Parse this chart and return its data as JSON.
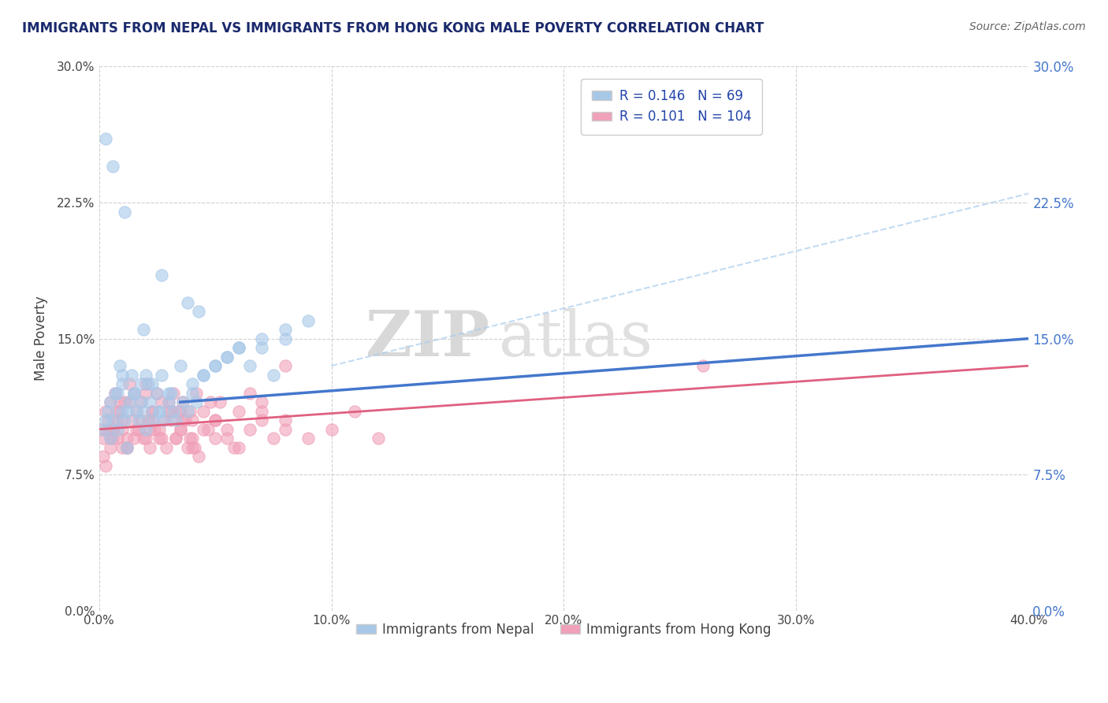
{
  "title": "IMMIGRANTS FROM NEPAL VS IMMIGRANTS FROM HONG KONG MALE POVERTY CORRELATION CHART",
  "source": "Source: ZipAtlas.com",
  "xlabel_nepal": "Immigrants from Nepal",
  "xlabel_hongkong": "Immigrants from Hong Kong",
  "ylabel": "Male Poverty",
  "r_nepal": 0.146,
  "n_nepal": 69,
  "r_hongkong": 0.101,
  "n_hongkong": 104,
  "color_nepal": "#a8c8e8",
  "color_hongkong": "#f0a0b8",
  "color_nepal_line": "#4477cc",
  "color_hongkong_line": "#e06080",
  "legend_r_color": "#000000",
  "legend_n_color": "#44aa44",
  "watermark_zip": "ZIP",
  "watermark_atlas": "atlas",
  "xlim": [
    0.0,
    40.0
  ],
  "ylim": [
    0.0,
    30.0
  ],
  "xticks": [
    0.0,
    10.0,
    20.0,
    30.0,
    40.0
  ],
  "yticks": [
    0.0,
    7.5,
    15.0,
    22.5,
    30.0
  ],
  "xtick_labels": [
    "0.0%",
    "10.0%",
    "20.0%",
    "30.0%",
    "40.0%"
  ],
  "ytick_labels": [
    "0.0%",
    "7.5%",
    "15.0%",
    "22.5%",
    "30.0%"
  ],
  "nepal_line_x0": 3.5,
  "nepal_line_x1": 40.0,
  "nepal_line_y0": 11.5,
  "nepal_line_y1": 15.0,
  "hk_line_x0": 0.0,
  "hk_line_x1": 40.0,
  "hk_line_y0": 10.0,
  "hk_line_y1": 13.5,
  "nepal_scatter_x": [
    0.3,
    0.5,
    0.5,
    0.7,
    0.8,
    0.9,
    1.0,
    1.0,
    1.1,
    1.2,
    1.3,
    1.4,
    1.5,
    1.6,
    1.7,
    1.8,
    1.9,
    2.0,
    2.1,
    2.2,
    2.3,
    2.5,
    2.6,
    2.7,
    2.8,
    3.0,
    3.1,
    3.2,
    3.5,
    3.8,
    4.0,
    4.2,
    4.5,
    5.0,
    5.5,
    6.0,
    6.5,
    7.0,
    7.5,
    8.0,
    0.2,
    0.4,
    0.6,
    0.8,
    1.0,
    1.2,
    1.5,
    1.8,
    2.0,
    2.3,
    2.6,
    3.0,
    3.3,
    3.6,
    4.0,
    4.5,
    5.0,
    5.5,
    6.0,
    7.0,
    8.0,
    9.0,
    0.3,
    0.6,
    1.1,
    2.7,
    3.8,
    4.3,
    1.9
  ],
  "nepal_scatter_y": [
    10.5,
    11.5,
    9.5,
    12.0,
    10.0,
    13.5,
    11.0,
    12.5,
    10.5,
    9.0,
    11.5,
    13.0,
    12.0,
    11.0,
    10.5,
    12.5,
    11.0,
    10.0,
    12.5,
    11.5,
    10.5,
    12.0,
    11.0,
    13.0,
    10.5,
    11.5,
    12.0,
    11.0,
    13.5,
    11.0,
    12.0,
    11.5,
    13.0,
    13.5,
    14.0,
    14.5,
    13.5,
    14.5,
    13.0,
    15.0,
    10.0,
    11.0,
    10.5,
    12.0,
    13.0,
    11.0,
    12.0,
    11.5,
    13.0,
    12.5,
    11.0,
    12.0,
    10.5,
    11.5,
    12.5,
    13.0,
    13.5,
    14.0,
    14.5,
    15.0,
    15.5,
    16.0,
    26.0,
    24.5,
    22.0,
    18.5,
    17.0,
    16.5,
    15.5
  ],
  "hongkong_scatter_x": [
    0.1,
    0.2,
    0.3,
    0.4,
    0.5,
    0.5,
    0.6,
    0.7,
    0.8,
    0.9,
    1.0,
    1.1,
    1.2,
    1.3,
    1.4,
    1.5,
    1.6,
    1.7,
    1.8,
    1.9,
    2.0,
    2.1,
    2.2,
    2.3,
    2.4,
    2.5,
    2.6,
    2.7,
    2.8,
    2.9,
    3.0,
    3.1,
    3.2,
    3.3,
    3.4,
    3.5,
    3.6,
    3.7,
    3.8,
    3.9,
    4.0,
    4.1,
    4.2,
    4.5,
    4.8,
    5.0,
    5.5,
    0.2,
    0.4,
    0.6,
    0.8,
    1.0,
    1.2,
    1.5,
    1.8,
    2.0,
    2.3,
    2.6,
    3.0,
    3.3,
    3.6,
    4.0,
    4.5,
    5.0,
    5.5,
    6.0,
    6.5,
    7.0,
    7.5,
    8.0,
    0.3,
    0.5,
    0.8,
    1.0,
    1.3,
    1.6,
    2.0,
    2.3,
    2.7,
    3.1,
    3.5,
    3.9,
    4.3,
    4.7,
    5.2,
    5.8,
    6.5,
    7.0,
    8.0,
    26.0,
    0.6,
    0.9,
    1.2,
    2.2,
    3.5,
    4.0,
    5.0,
    6.0,
    7.0,
    8.0,
    9.0,
    10.0,
    11.0,
    12.0
  ],
  "hongkong_scatter_y": [
    10.0,
    9.5,
    11.0,
    10.5,
    9.0,
    11.5,
    10.0,
    12.0,
    9.5,
    11.0,
    10.0,
    11.5,
    9.0,
    12.5,
    10.5,
    9.5,
    11.0,
    10.0,
    11.5,
    9.5,
    12.0,
    10.5,
    9.0,
    11.0,
    10.0,
    12.0,
    9.5,
    11.5,
    10.5,
    9.0,
    11.0,
    10.5,
    12.0,
    9.5,
    11.0,
    10.0,
    11.5,
    10.5,
    9.0,
    11.0,
    10.5,
    9.0,
    12.0,
    10.0,
    11.5,
    9.5,
    10.0,
    8.5,
    10.0,
    9.5,
    11.0,
    10.5,
    9.0,
    12.0,
    10.5,
    9.5,
    11.0,
    10.0,
    11.5,
    9.5,
    10.5,
    9.0,
    11.0,
    10.5,
    9.5,
    11.0,
    10.0,
    11.5,
    9.5,
    10.0,
    8.0,
    9.5,
    10.5,
    9.0,
    11.5,
    10.0,
    12.5,
    10.5,
    9.5,
    11.0,
    10.0,
    9.5,
    8.5,
    10.0,
    11.5,
    9.0,
    12.0,
    10.5,
    13.5,
    13.5,
    10.0,
    11.5,
    9.5,
    10.0,
    11.0,
    9.5,
    10.5,
    9.0,
    11.0,
    10.5,
    9.5,
    10.0,
    11.0,
    9.5
  ]
}
